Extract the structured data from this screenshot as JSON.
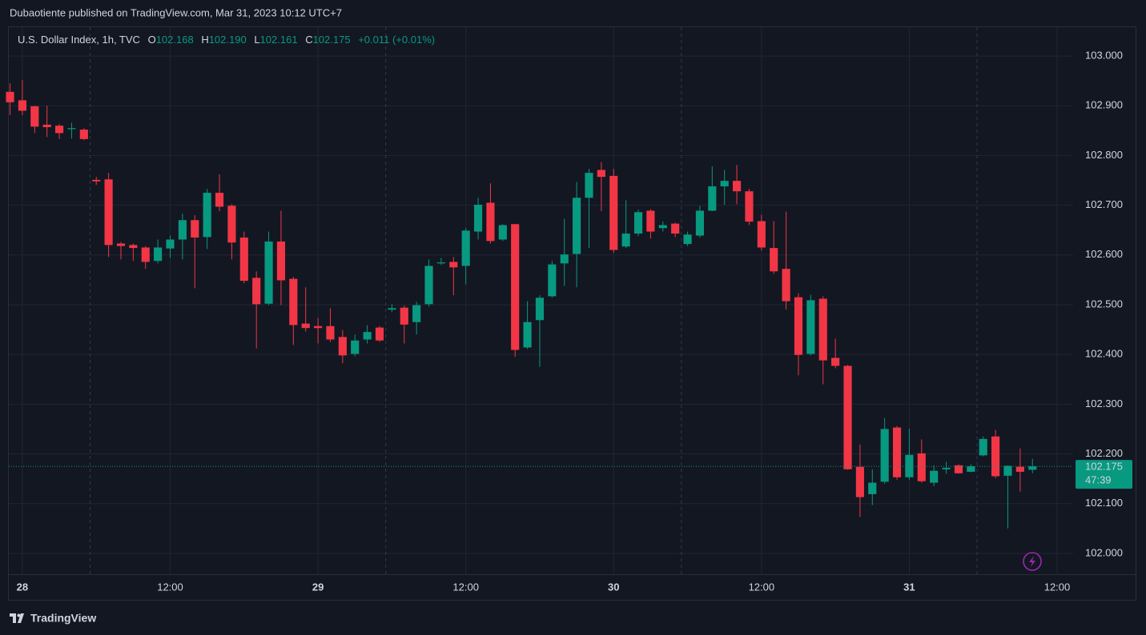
{
  "header": {
    "published": "Dubaotiente published on TradingView.com, Mar 31, 2023 10:12 UTC+7",
    "symbol": "U.S. Dollar Index, 1h, TVC",
    "open_label": "O",
    "open": "102.168",
    "high_label": "H",
    "high": "102.190",
    "low_label": "L",
    "low": "102.161",
    "close_label": "C",
    "close": "102.175",
    "change": "+0.011 (+0.01%)"
  },
  "footer": {
    "brand": "TradingView"
  },
  "chart_data": {
    "type": "candlestick",
    "up_color": "#089981",
    "down_color": "#f23645",
    "open": [
      102.928,
      102.911,
      102.899,
      102.862,
      102.86,
      102.853,
      102.852,
      102.751,
      102.752,
      102.623,
      102.62,
      102.615,
      102.588,
      102.613,
      102.631,
      102.67,
      102.636,
      102.725,
      102.699,
      102.635,
      102.554,
      102.502,
      102.627,
      102.552,
      102.462,
      102.457,
      102.457,
      102.435,
      102.401,
      102.43,
      102.454,
      102.49,
      102.494,
      102.465,
      102.501,
      102.583,
      102.586,
      102.578,
      102.647,
      102.705,
      102.631,
      102.662,
      102.414,
      102.469,
      102.517,
      102.583,
      102.602,
      102.715,
      102.771,
      102.759,
      102.617,
      102.643,
      102.689,
      102.654,
      102.663,
      102.622,
      102.639,
      102.689,
      102.738,
      102.749,
      102.728,
      102.668,
      102.614,
      102.572,
      102.515,
      102.401,
      102.512,
      102.393,
      102.377,
      102.174,
      102.119,
      102.144,
      102.253,
      102.153,
      102.201,
      102.142,
      102.169,
      102.177,
      102.164,
      102.197,
      102.235,
      102.156,
      102.174,
      102.168
    ],
    "high": [
      102.945,
      102.952,
      102.9,
      102.9,
      102.863,
      102.866,
      102.855,
      102.757,
      102.765,
      102.626,
      102.623,
      102.618,
      102.631,
      102.639,
      102.683,
      102.68,
      102.733,
      102.762,
      102.702,
      102.647,
      102.567,
      102.647,
      102.689,
      102.556,
      102.535,
      102.473,
      102.493,
      102.449,
      102.44,
      102.459,
      102.457,
      102.501,
      102.498,
      102.506,
      102.591,
      102.594,
      102.596,
      102.654,
      102.715,
      102.744,
      102.662,
      102.662,
      102.507,
      102.519,
      102.588,
      102.673,
      102.747,
      102.773,
      102.787,
      102.773,
      102.71,
      102.691,
      102.692,
      102.667,
      102.665,
      102.647,
      102.699,
      102.778,
      102.771,
      102.781,
      102.733,
      102.681,
      102.668,
      102.687,
      102.523,
      102.52,
      102.517,
      102.432,
      102.379,
      102.219,
      102.169,
      102.272,
      102.256,
      102.251,
      102.229,
      102.177,
      102.184,
      102.179,
      102.179,
      102.235,
      102.248,
      102.177,
      102.211,
      102.19
    ],
    "low": [
      102.881,
      102.881,
      102.845,
      102.837,
      102.833,
      102.834,
      102.831,
      102.741,
      102.596,
      102.591,
      102.588,
      102.572,
      102.583,
      102.594,
      102.591,
      102.533,
      102.612,
      102.688,
      102.591,
      102.543,
      102.412,
      102.499,
      102.499,
      102.419,
      102.446,
      102.422,
      102.425,
      102.382,
      102.396,
      102.422,
      102.425,
      102.485,
      102.422,
      102.44,
      102.496,
      102.58,
      102.519,
      102.541,
      102.631,
      102.623,
      102.628,
      102.395,
      102.411,
      102.375,
      102.514,
      102.538,
      102.535,
      102.614,
      102.688,
      102.604,
      102.614,
      102.638,
      102.633,
      102.647,
      102.636,
      102.618,
      102.635,
      102.688,
      102.701,
      102.702,
      102.66,
      102.609,
      102.562,
      102.49,
      102.358,
      102.398,
      102.34,
      102.372,
      102.168,
      102.073,
      102.097,
      102.14,
      102.148,
      102.148,
      102.142,
      102.135,
      102.16,
      102.16,
      102.163,
      102.195,
      102.151,
      102.05,
      102.124,
      102.161
    ],
    "close": [
      102.907,
      102.89,
      102.858,
      102.857,
      102.845,
      102.855,
      102.833,
      102.748,
      102.62,
      102.618,
      102.614,
      102.586,
      102.615,
      102.631,
      102.67,
      102.635,
      102.725,
      102.697,
      102.625,
      102.548,
      102.501,
      102.627,
      102.549,
      102.459,
      102.453,
      102.453,
      102.43,
      102.398,
      102.428,
      102.445,
      102.428,
      102.493,
      102.46,
      102.499,
      102.578,
      102.585,
      102.575,
      102.649,
      102.701,
      102.628,
      102.66,
      102.409,
      102.465,
      102.514,
      102.581,
      102.601,
      102.715,
      102.765,
      102.757,
      102.61,
      102.643,
      102.686,
      102.647,
      102.66,
      102.643,
      102.641,
      102.689,
      102.738,
      102.749,
      102.728,
      102.667,
      102.615,
      102.567,
      102.507,
      102.399,
      102.509,
      102.388,
      102.377,
      102.169,
      102.113,
      102.142,
      102.25,
      102.153,
      102.198,
      102.145,
      102.166,
      102.172,
      102.161,
      102.175,
      102.23,
      102.155,
      102.176,
      102.164,
      102.175
    ],
    "xlim": [
      -0.1,
      86.3
    ],
    "xticks": [
      {
        "value": 1,
        "label": "28"
      },
      {
        "value": 13,
        "label": "12:00"
      },
      {
        "value": 25,
        "label": "29"
      },
      {
        "value": 37,
        "label": "12:00"
      },
      {
        "value": 49,
        "label": "30"
      },
      {
        "value": 61,
        "label": "12:00"
      },
      {
        "value": 73,
        "label": "31"
      },
      {
        "value": 85,
        "label": "12:00"
      }
    ],
    "session_breaks": [
      6.5,
      30.5,
      54.5,
      78.5
    ],
    "ylim": [
      101.958,
      103.058
    ],
    "yticks": [
      {
        "value": 102.0,
        "label": "102.000"
      },
      {
        "value": 102.1,
        "label": "102.100"
      },
      {
        "value": 102.2,
        "label": "102.200"
      },
      {
        "value": 102.3,
        "label": "102.300"
      },
      {
        "value": 102.4,
        "label": "102.400"
      },
      {
        "value": 102.5,
        "label": "102.500"
      },
      {
        "value": 102.6,
        "label": "102.600"
      },
      {
        "value": 102.7,
        "label": "102.700"
      },
      {
        "value": 102.8,
        "label": "102.800"
      },
      {
        "value": 102.9,
        "label": "102.900"
      },
      {
        "value": 103.0,
        "label": "103.000"
      }
    ],
    "grid": true,
    "last_price": {
      "value": 102.175,
      "label": "102.175"
    },
    "countdown": "47:39"
  }
}
